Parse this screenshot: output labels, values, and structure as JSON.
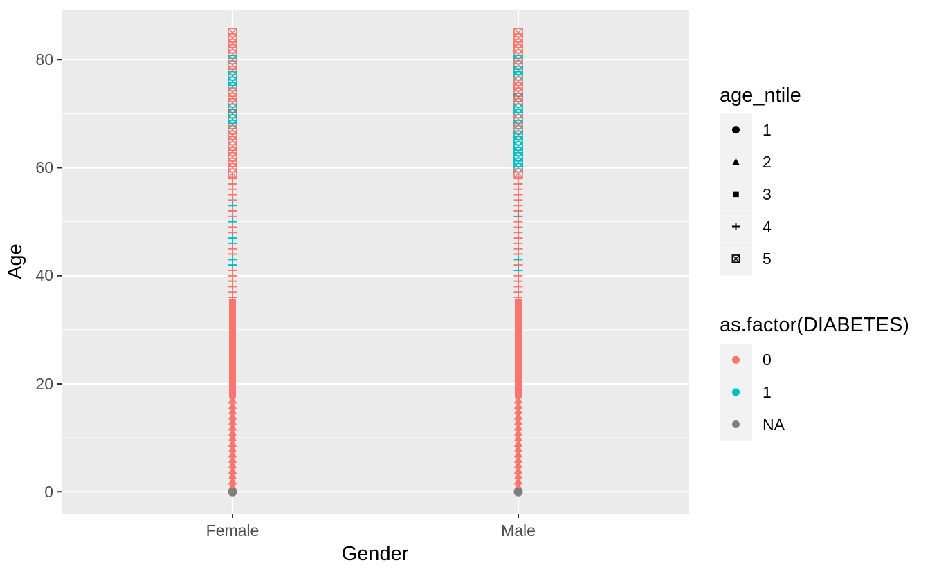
{
  "chart_data": {
    "type": "scatter",
    "title": "",
    "xlabel": "Gender",
    "ylabel": "Age",
    "x_categories": [
      "Female",
      "Male"
    ],
    "y_ticks": [
      0,
      20,
      40,
      60,
      80
    ],
    "y_minor_ticks": [
      10,
      30,
      50,
      70
    ],
    "ylim": [
      -4,
      89
    ],
    "grid": true,
    "legend_position": "right",
    "colors": {
      "diabetes_0": "#F8766D",
      "diabetes_1": "#00BFC4",
      "diabetes_na": "#7F7F7F",
      "panel_bg": "#EBEBEB",
      "grid_line": "#FFFFFF",
      "legend_key_bg": "#F2F2F2",
      "tick_mark": "#333333",
      "tick_text": "#4D4D4D",
      "legend_symbol": "#000000"
    },
    "shape_legend": {
      "title": "age_ntile",
      "entries": [
        {
          "label": "1",
          "shape": "circle"
        },
        {
          "label": "2",
          "shape": "triangle"
        },
        {
          "label": "3",
          "shape": "square"
        },
        {
          "label": "4",
          "shape": "plus"
        },
        {
          "label": "5",
          "shape": "square-cross"
        }
      ]
    },
    "color_legend": {
      "title": "as.factor(DIABETES)",
      "entries": [
        {
          "label": "0",
          "color": "#F8766D"
        },
        {
          "label": "1",
          "color": "#00BFC4"
        },
        {
          "label": "NA",
          "color": "#7F7F7F"
        }
      ]
    },
    "point_format": [
      "age",
      "age_ntile_shape",
      "diabetes"
    ],
    "series": [
      {
        "gender": "Female",
        "points": [
          [
            0,
            1,
            "NA"
          ],
          [
            1,
            2,
            "0"
          ],
          [
            2,
            2,
            "0"
          ],
          [
            3,
            2,
            "0"
          ],
          [
            4,
            2,
            "0"
          ],
          [
            5,
            2,
            "0"
          ],
          [
            6,
            2,
            "0"
          ],
          [
            7,
            2,
            "0"
          ],
          [
            8,
            2,
            "0"
          ],
          [
            9,
            2,
            "0"
          ],
          [
            10,
            2,
            "0"
          ],
          [
            11,
            2,
            "0"
          ],
          [
            12,
            2,
            "0"
          ],
          [
            13,
            2,
            "0"
          ],
          [
            14,
            2,
            "0"
          ],
          [
            15,
            2,
            "0"
          ],
          [
            16,
            2,
            "0"
          ],
          [
            17,
            2,
            "0"
          ],
          [
            18,
            3,
            "0"
          ],
          [
            19,
            3,
            "0"
          ],
          [
            20,
            3,
            "0"
          ],
          [
            21,
            3,
            "0"
          ],
          [
            22,
            3,
            "0"
          ],
          [
            23,
            3,
            "0"
          ],
          [
            24,
            3,
            "0"
          ],
          [
            25,
            3,
            "0"
          ],
          [
            26,
            3,
            "0"
          ],
          [
            27,
            3,
            "0"
          ],
          [
            28,
            3,
            "0"
          ],
          [
            29,
            3,
            "0"
          ],
          [
            30,
            3,
            "0"
          ],
          [
            31,
            3,
            "0"
          ],
          [
            32,
            3,
            "0"
          ],
          [
            33,
            3,
            "0"
          ],
          [
            34,
            3,
            "0"
          ],
          [
            35,
            3,
            "0"
          ],
          [
            36,
            4,
            "0"
          ],
          [
            37,
            4,
            "0"
          ],
          [
            38,
            4,
            "0"
          ],
          [
            39,
            4,
            "0"
          ],
          [
            40,
            4,
            "0"
          ],
          [
            41,
            4,
            "0"
          ],
          [
            42,
            4,
            "1"
          ],
          [
            43,
            4,
            "1"
          ],
          [
            44,
            4,
            "0"
          ],
          [
            45,
            4,
            "0"
          ],
          [
            46,
            4,
            "1"
          ],
          [
            47,
            4,
            "1"
          ],
          [
            48,
            4,
            "0"
          ],
          [
            49,
            4,
            "0"
          ],
          [
            50,
            4,
            "1"
          ],
          [
            51,
            4,
            "0"
          ],
          [
            52,
            4,
            "0"
          ],
          [
            53,
            4,
            "1"
          ],
          [
            54,
            4,
            "0"
          ],
          [
            55,
            4,
            "0"
          ],
          [
            56,
            4,
            "0"
          ],
          [
            57,
            4,
            "0"
          ],
          [
            58,
            4,
            "0"
          ],
          [
            59,
            5,
            "0"
          ],
          [
            60,
            5,
            "0"
          ],
          [
            61,
            5,
            "0"
          ],
          [
            62,
            5,
            "0"
          ],
          [
            63,
            5,
            "0"
          ],
          [
            64,
            5,
            "0"
          ],
          [
            65,
            5,
            "0"
          ],
          [
            66,
            5,
            "0"
          ],
          [
            67,
            5,
            "0"
          ],
          [
            68,
            5,
            "1"
          ],
          [
            69,
            5,
            "1"
          ],
          [
            70,
            5,
            "NA"
          ],
          [
            71,
            5,
            "1"
          ],
          [
            72,
            5,
            "0"
          ],
          [
            73,
            5,
            "0"
          ],
          [
            74,
            5,
            "0"
          ],
          [
            75,
            5,
            "1"
          ],
          [
            76,
            5,
            "1"
          ],
          [
            77,
            5,
            "1"
          ],
          [
            78,
            5,
            "0"
          ],
          [
            79,
            5,
            "0"
          ],
          [
            80,
            5,
            "1"
          ],
          [
            81,
            5,
            "0"
          ],
          [
            82,
            5,
            "0"
          ],
          [
            83,
            5,
            "0"
          ],
          [
            84,
            5,
            "0"
          ],
          [
            85,
            5,
            "0"
          ]
        ]
      },
      {
        "gender": "Male",
        "points": [
          [
            0,
            1,
            "NA"
          ],
          [
            1,
            2,
            "0"
          ],
          [
            2,
            2,
            "0"
          ],
          [
            3,
            2,
            "0"
          ],
          [
            4,
            2,
            "0"
          ],
          [
            5,
            2,
            "0"
          ],
          [
            6,
            2,
            "0"
          ],
          [
            7,
            2,
            "0"
          ],
          [
            8,
            2,
            "0"
          ],
          [
            9,
            2,
            "0"
          ],
          [
            10,
            2,
            "0"
          ],
          [
            11,
            2,
            "0"
          ],
          [
            12,
            2,
            "0"
          ],
          [
            13,
            2,
            "0"
          ],
          [
            14,
            2,
            "0"
          ],
          [
            15,
            2,
            "0"
          ],
          [
            16,
            2,
            "0"
          ],
          [
            17,
            2,
            "0"
          ],
          [
            18,
            3,
            "0"
          ],
          [
            19,
            3,
            "0"
          ],
          [
            20,
            3,
            "0"
          ],
          [
            21,
            3,
            "0"
          ],
          [
            22,
            3,
            "0"
          ],
          [
            23,
            3,
            "0"
          ],
          [
            24,
            3,
            "0"
          ],
          [
            25,
            3,
            "0"
          ],
          [
            26,
            3,
            "0"
          ],
          [
            27,
            3,
            "0"
          ],
          [
            28,
            3,
            "0"
          ],
          [
            29,
            3,
            "0"
          ],
          [
            30,
            3,
            "0"
          ],
          [
            31,
            3,
            "0"
          ],
          [
            32,
            3,
            "0"
          ],
          [
            33,
            3,
            "0"
          ],
          [
            34,
            3,
            "0"
          ],
          [
            35,
            3,
            "0"
          ],
          [
            36,
            4,
            "0"
          ],
          [
            37,
            4,
            "0"
          ],
          [
            38,
            4,
            "0"
          ],
          [
            39,
            4,
            "0"
          ],
          [
            40,
            4,
            "0"
          ],
          [
            41,
            4,
            "1"
          ],
          [
            42,
            4,
            "0"
          ],
          [
            43,
            4,
            "1"
          ],
          [
            44,
            4,
            "0"
          ],
          [
            45,
            4,
            "0"
          ],
          [
            46,
            4,
            "0"
          ],
          [
            47,
            4,
            "0"
          ],
          [
            48,
            4,
            "0"
          ],
          [
            49,
            4,
            "0"
          ],
          [
            50,
            4,
            "0"
          ],
          [
            51,
            4,
            "NA"
          ],
          [
            52,
            4,
            "0"
          ],
          [
            53,
            4,
            "0"
          ],
          [
            54,
            4,
            "0"
          ],
          [
            55,
            4,
            "0"
          ],
          [
            56,
            4,
            "0"
          ],
          [
            57,
            4,
            "0"
          ],
          [
            58,
            4,
            "0"
          ],
          [
            59,
            5,
            "0"
          ],
          [
            60,
            5,
            "1"
          ],
          [
            61,
            5,
            "1"
          ],
          [
            62,
            5,
            "1"
          ],
          [
            63,
            5,
            "1"
          ],
          [
            64,
            5,
            "1"
          ],
          [
            65,
            5,
            "1"
          ],
          [
            66,
            5,
            "1"
          ],
          [
            67,
            5,
            "0"
          ],
          [
            68,
            5,
            "1"
          ],
          [
            69,
            5,
            "0"
          ],
          [
            70,
            5,
            "1"
          ],
          [
            71,
            5,
            "1"
          ],
          [
            72,
            5,
            "0"
          ],
          [
            73,
            5,
            "NA"
          ],
          [
            74,
            5,
            "0"
          ],
          [
            75,
            5,
            "0"
          ],
          [
            76,
            5,
            "0"
          ],
          [
            77,
            5,
            "1"
          ],
          [
            78,
            5,
            "1"
          ],
          [
            79,
            5,
            "0"
          ],
          [
            80,
            5,
            "1"
          ],
          [
            81,
            5,
            "0"
          ],
          [
            82,
            5,
            "0"
          ],
          [
            83,
            5,
            "0"
          ],
          [
            84,
            5,
            "0"
          ],
          [
            85,
            5,
            "0"
          ]
        ]
      }
    ]
  }
}
